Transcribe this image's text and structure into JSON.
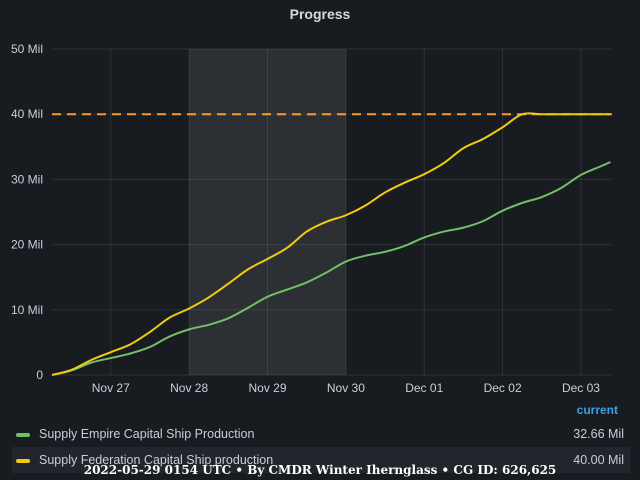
{
  "chart_data": {
    "type": "line",
    "title": "Progress",
    "y_unit_suffix": " Mil",
    "yticks": [
      0,
      10,
      20,
      30,
      40,
      50
    ],
    "ytick_labels": [
      "0",
      "10 Mil",
      "20 Mil",
      "30 Mil",
      "40 Mil",
      "50 Mil"
    ],
    "ylim": [
      0,
      50
    ],
    "xlim": [
      "2022-11-26T06:00",
      "2022-12-03T09:30"
    ],
    "xticks": [
      "2022-11-27T00:00",
      "2022-11-28T00:00",
      "2022-11-29T00:00",
      "2022-11-30T00:00",
      "2022-12-01T00:00",
      "2022-12-02T00:00",
      "2022-12-03T00:00"
    ],
    "xtick_labels": [
      "Nov 27",
      "Nov 28",
      "Nov 29",
      "Nov 30",
      "Dec 01",
      "Dec 02",
      "Dec 03"
    ],
    "highlight_region": [
      "2022-11-28T00:00",
      "2022-11-30T00:00"
    ],
    "threshold": {
      "value": 40,
      "color": "#ff9830",
      "style": "dashed"
    },
    "grid": true,
    "legend_placement": "bottom",
    "legend_header": "current",
    "series": [
      {
        "name": "Supply Empire Capital Ship Production",
        "color": "#73bf69",
        "current_label": "32.66 Mil",
        "x": [
          "2022-11-26T06:00",
          "2022-11-26T12:00",
          "2022-11-26T18:00",
          "2022-11-27T00:00",
          "2022-11-27T06:00",
          "2022-11-27T12:00",
          "2022-11-27T18:00",
          "2022-11-28T00:00",
          "2022-11-28T06:00",
          "2022-11-28T12:00",
          "2022-11-28T18:00",
          "2022-11-29T00:00",
          "2022-11-29T06:00",
          "2022-11-29T12:00",
          "2022-11-29T18:00",
          "2022-11-30T00:00",
          "2022-11-30T06:00",
          "2022-11-30T12:00",
          "2022-11-30T18:00",
          "2022-12-01T00:00",
          "2022-12-01T06:00",
          "2022-12-01T12:00",
          "2022-12-01T18:00",
          "2022-12-02T00:00",
          "2022-12-02T06:00",
          "2022-12-02T12:00",
          "2022-12-02T18:00",
          "2022-12-03T00:00",
          "2022-12-03T06:00",
          "2022-12-03T09:00"
        ],
        "values": [
          0,
          0.7,
          1.9,
          2.6,
          3.3,
          4.3,
          5.9,
          7.0,
          7.7,
          8.7,
          10.3,
          12.0,
          13.1,
          14.2,
          15.7,
          17.4,
          18.3,
          18.9,
          19.8,
          21.1,
          22.0,
          22.6,
          23.6,
          25.2,
          26.4,
          27.3,
          28.7,
          30.7,
          32.0,
          32.66
        ]
      },
      {
        "name": "Supply Federation Capital Ship production",
        "color": "#f2cc0c",
        "current_label": "40.00 Mil",
        "x": [
          "2022-11-26T06:00",
          "2022-11-26T12:00",
          "2022-11-26T18:00",
          "2022-11-27T00:00",
          "2022-11-27T06:00",
          "2022-11-27T12:00",
          "2022-11-27T18:00",
          "2022-11-28T00:00",
          "2022-11-28T06:00",
          "2022-11-28T12:00",
          "2022-11-28T18:00",
          "2022-11-29T00:00",
          "2022-11-29T06:00",
          "2022-11-29T12:00",
          "2022-11-29T18:00",
          "2022-11-30T00:00",
          "2022-11-30T06:00",
          "2022-11-30T12:00",
          "2022-11-30T18:00",
          "2022-12-01T00:00",
          "2022-12-01T06:00",
          "2022-12-01T12:00",
          "2022-12-01T18:00",
          "2022-12-02T00:00",
          "2022-12-02T06:00",
          "2022-12-02T12:00",
          "2022-12-02T18:00",
          "2022-12-03T00:00",
          "2022-12-03T06:00",
          "2022-12-03T09:00"
        ],
        "values": [
          0,
          0.8,
          2.3,
          3.5,
          4.7,
          6.6,
          8.8,
          10.2,
          11.9,
          14.0,
          16.2,
          17.8,
          19.5,
          22.0,
          23.5,
          24.5,
          26.0,
          28.0,
          29.5,
          30.8,
          32.5,
          34.8,
          36.2,
          38.0,
          40.0,
          40.0,
          40.0,
          40.0,
          40.0,
          40.0
        ]
      }
    ]
  },
  "footer": "2022-05-29 0154 UTC • By CMDR Winter Ihernglass • CG ID: 626,625"
}
